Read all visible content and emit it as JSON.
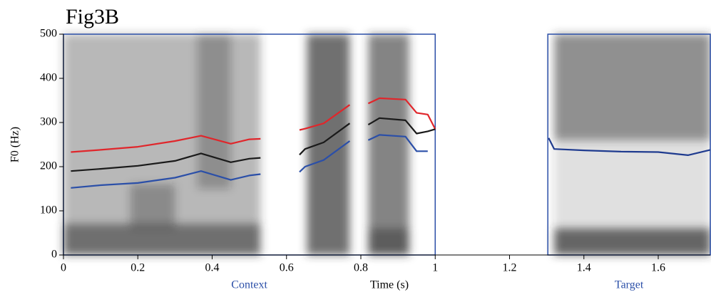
{
  "chart_data": {
    "type": "line",
    "title": "Fig3B",
    "x_label": "Time (s)",
    "y_label": "F0 (Hz)",
    "xlim": [
      0,
      1.74
    ],
    "ylim": [
      0,
      500
    ],
    "xticks": [
      0,
      0.2,
      0.4,
      0.6,
      0.8,
      1,
      1.2,
      1.4,
      1.6
    ],
    "yticks": [
      0,
      100,
      200,
      300,
      400,
      500
    ],
    "regions": [
      {
        "label": "Context",
        "range": [
          0,
          1
        ],
        "color": "#2b4fa8"
      },
      {
        "label": "Target",
        "range": [
          1.303,
          1.74
        ],
        "color": "#2b4fa8"
      }
    ],
    "series": [
      {
        "color": "#e0262b",
        "x": [
          0.02,
          0.1,
          0.2,
          0.3,
          0.37,
          0.45,
          0.5,
          0.53,
          0.58,
          0.635,
          0.65,
          0.7,
          0.77,
          0.8,
          0.82,
          0.85,
          0.92,
          0.95,
          0.98,
          1
        ],
        "values": [
          233,
          238,
          245,
          258,
          270,
          252,
          262,
          263,
          null,
          283,
          286,
          298,
          340,
          null,
          343,
          355,
          352,
          322,
          318,
          285
        ]
      },
      {
        "color": "#1a1a1a",
        "x": [
          0.02,
          0.1,
          0.2,
          0.3,
          0.37,
          0.45,
          0.5,
          0.53,
          0.58,
          0.635,
          0.65,
          0.7,
          0.77,
          0.8,
          0.82,
          0.85,
          0.92,
          0.95,
          0.98,
          1
        ],
        "values": [
          190,
          195,
          202,
          213,
          230,
          210,
          218,
          220,
          null,
          227,
          240,
          255,
          298,
          null,
          295,
          310,
          305,
          275,
          280,
          285
        ]
      },
      {
        "color": "#2b4fa8",
        "x": [
          0.02,
          0.1,
          0.2,
          0.3,
          0.37,
          0.45,
          0.5,
          0.53,
          0.58,
          0.635,
          0.65,
          0.7,
          0.77,
          0.8,
          0.82,
          0.85,
          0.92,
          0.95,
          0.98
        ],
        "values": [
          152,
          158,
          163,
          175,
          190,
          170,
          180,
          183,
          null,
          188,
          200,
          215,
          258,
          null,
          260,
          272,
          268,
          235,
          235
        ]
      },
      {
        "color": "#1f3b8f",
        "x": [
          1.305,
          1.32,
          1.4,
          1.5,
          1.6,
          1.68,
          1.74
        ],
        "values": [
          265,
          240,
          237,
          234,
          233,
          226,
          238
        ]
      }
    ]
  }
}
